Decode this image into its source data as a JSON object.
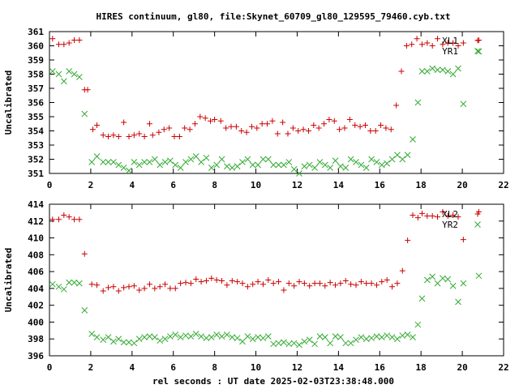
{
  "title": "HIRES continuum, gl80, file:Skynet_60709_gl80_129595_79460.cyb.txt",
  "xlabel": "rel seconds : UT date 2025-02-03T23:38:48.000",
  "colors": {
    "series_x": "#cc0000",
    "series_y": "#33aa33",
    "axis": "#000000"
  },
  "chart_data": [
    {
      "type": "scatter",
      "ylabel": "Uncalibrated",
      "xlim": [
        0,
        22
      ],
      "ylim": [
        351,
        361
      ],
      "xticks": [
        0,
        2,
        4,
        6,
        8,
        10,
        12,
        14,
        16,
        18,
        20,
        22
      ],
      "yticks": [
        351,
        352,
        353,
        354,
        355,
        356,
        357,
        358,
        359,
        360,
        361
      ],
      "series": [
        {
          "name": "XL1",
          "marker": "plus",
          "x": [
            0.15,
            0.45,
            0.7,
            0.95,
            1.2,
            1.45,
            1.7,
            1.85,
            2.1,
            2.3,
            2.6,
            2.85,
            3.1,
            3.35,
            3.6,
            3.85,
            4.1,
            4.35,
            4.6,
            4.85,
            5.0,
            5.3,
            5.55,
            5.8,
            6.05,
            6.3,
            6.55,
            6.8,
            7.05,
            7.3,
            7.55,
            7.8,
            8.0,
            8.3,
            8.55,
            8.8,
            9.05,
            9.3,
            9.55,
            9.8,
            10.05,
            10.3,
            10.55,
            10.8,
            11.05,
            11.3,
            11.55,
            11.8,
            12.05,
            12.3,
            12.55,
            12.8,
            13.05,
            13.3,
            13.55,
            13.8,
            14.05,
            14.3,
            14.55,
            14.8,
            15.05,
            15.3,
            15.55,
            15.8,
            16.05,
            16.3,
            16.55,
            16.8,
            17.05,
            17.3,
            17.55,
            17.8,
            18.05,
            18.3,
            18.55,
            18.8,
            19.05,
            19.3,
            19.55,
            19.8,
            20.05,
            20.8
          ],
          "y": [
            360.5,
            360.1,
            360.1,
            360.2,
            360.4,
            360.4,
            356.9,
            356.9,
            354.1,
            354.4,
            353.7,
            353.6,
            353.7,
            353.6,
            354.6,
            353.6,
            353.7,
            353.8,
            353.6,
            354.5,
            353.7,
            353.9,
            354.1,
            354.2,
            353.6,
            353.6,
            354.2,
            354.1,
            354.5,
            355.0,
            354.9,
            354.7,
            354.8,
            354.7,
            354.2,
            354.3,
            354.3,
            354.0,
            353.9,
            354.3,
            354.2,
            354.5,
            354.5,
            354.7,
            353.8,
            354.6,
            353.8,
            354.2,
            354.0,
            354.1,
            354.0,
            354.4,
            354.2,
            354.5,
            354.8,
            354.7,
            354.1,
            354.2,
            354.8,
            354.4,
            354.3,
            354.4,
            354.0,
            354.0,
            354.4,
            354.2,
            354.1,
            355.8,
            358.2,
            360.0,
            360.1,
            360.5,
            360.1,
            360.2,
            360.0,
            360.5,
            360.1,
            360.2,
            360.2,
            360.0,
            360.2,
            360.4
          ],
          "color": "#cc0000"
        },
        {
          "name": "YR1",
          "marker": "cross",
          "x": [
            0.15,
            0.45,
            0.7,
            0.95,
            1.2,
            1.45,
            1.7,
            2.05,
            2.3,
            2.6,
            2.85,
            3.1,
            3.35,
            3.6,
            3.85,
            4.1,
            4.35,
            4.6,
            4.85,
            5.1,
            5.35,
            5.6,
            5.85,
            6.1,
            6.35,
            6.6,
            6.85,
            7.1,
            7.35,
            7.6,
            7.85,
            8.1,
            8.35,
            8.6,
            8.85,
            9.1,
            9.35,
            9.6,
            9.85,
            10.1,
            10.35,
            10.6,
            10.85,
            11.1,
            11.35,
            11.6,
            11.85,
            12.1,
            12.35,
            12.6,
            12.85,
            13.1,
            13.35,
            13.6,
            13.85,
            14.1,
            14.35,
            14.6,
            14.85,
            15.1,
            15.35,
            15.6,
            15.85,
            16.1,
            16.35,
            16.6,
            16.85,
            17.1,
            17.35,
            17.6,
            17.85,
            18.05,
            18.3,
            18.55,
            18.8,
            19.05,
            19.3,
            19.55,
            19.8,
            20.05,
            20.8
          ],
          "y": [
            358.2,
            358.0,
            357.5,
            358.2,
            358.0,
            357.8,
            355.2,
            351.8,
            352.2,
            351.8,
            351.8,
            351.8,
            351.6,
            351.4,
            351.2,
            351.8,
            351.6,
            351.8,
            351.8,
            352.0,
            351.6,
            351.8,
            351.9,
            351.6,
            351.4,
            351.8,
            352.0,
            352.2,
            351.8,
            352.1,
            351.4,
            351.6,
            352.0,
            351.5,
            351.4,
            351.5,
            351.8,
            352.0,
            351.6,
            351.6,
            352.0,
            352.0,
            351.6,
            351.6,
            351.6,
            351.8,
            351.3,
            351.0,
            351.5,
            351.6,
            351.4,
            351.8,
            351.6,
            351.4,
            351.9,
            351.5,
            351.4,
            352.0,
            351.8,
            351.6,
            351.4,
            352.0,
            351.8,
            351.6,
            351.7,
            352.0,
            352.3,
            352.0,
            352.3,
            353.4,
            356.0,
            358.2,
            358.2,
            358.4,
            358.3,
            358.3,
            358.2,
            358.0,
            358.4,
            355.9,
            359.6
          ],
          "color": "#33aa33"
        }
      ]
    },
    {
      "type": "scatter",
      "ylabel": "Uncalibrated",
      "xlim": [
        0,
        22
      ],
      "ylim": [
        396,
        414
      ],
      "xticks": [
        0,
        2,
        4,
        6,
        8,
        10,
        12,
        14,
        16,
        18,
        20,
        22
      ],
      "yticks": [
        396,
        398,
        400,
        402,
        404,
        406,
        408,
        410,
        412,
        414
      ],
      "series": [
        {
          "name": "XL2",
          "marker": "plus",
          "x": [
            0.15,
            0.45,
            0.7,
            0.95,
            1.2,
            1.45,
            1.7,
            2.05,
            2.3,
            2.6,
            2.85,
            3.1,
            3.35,
            3.6,
            3.85,
            4.1,
            4.35,
            4.6,
            4.85,
            5.1,
            5.35,
            5.6,
            5.85,
            6.1,
            6.35,
            6.6,
            6.85,
            7.1,
            7.35,
            7.6,
            7.85,
            8.1,
            8.35,
            8.6,
            8.85,
            9.1,
            9.35,
            9.6,
            9.85,
            10.1,
            10.35,
            10.6,
            10.85,
            11.1,
            11.35,
            11.6,
            11.85,
            12.1,
            12.35,
            12.6,
            12.85,
            13.1,
            13.35,
            13.6,
            13.85,
            14.1,
            14.35,
            14.6,
            14.85,
            15.1,
            15.35,
            15.6,
            15.85,
            16.1,
            16.35,
            16.6,
            16.85,
            17.1,
            17.35,
            17.6,
            17.85,
            18.05,
            18.3,
            18.55,
            18.8,
            19.05,
            19.3,
            19.55,
            19.8,
            20.05,
            20.8
          ],
          "y": [
            412.2,
            412.2,
            412.7,
            412.5,
            412.2,
            412.2,
            408.1,
            404.5,
            404.4,
            403.7,
            404.1,
            404.2,
            403.7,
            404.1,
            404.2,
            404.3,
            403.8,
            404.0,
            404.5,
            404.0,
            404.2,
            404.5,
            404.0,
            404.0,
            404.6,
            404.7,
            404.6,
            405.1,
            404.8,
            404.9,
            405.2,
            405.0,
            404.9,
            404.4,
            404.9,
            404.8,
            404.6,
            404.2,
            404.5,
            404.8,
            404.5,
            405.0,
            404.6,
            404.8,
            403.8,
            404.6,
            404.3,
            404.8,
            404.6,
            404.3,
            404.6,
            404.6,
            404.3,
            404.7,
            404.4,
            404.6,
            404.9,
            404.5,
            404.4,
            404.8,
            404.6,
            404.6,
            404.4,
            404.8,
            405.0,
            404.2,
            404.6,
            406.1,
            409.7,
            412.7,
            412.4,
            412.9,
            412.6,
            412.6,
            412.5,
            413.1,
            412.6,
            412.7,
            412.5,
            409.8,
            413.1
          ],
          "color": "#cc0000"
        },
        {
          "name": "YR2",
          "marker": "cross",
          "x": [
            0.15,
            0.45,
            0.7,
            0.95,
            1.2,
            1.45,
            1.7,
            2.05,
            2.3,
            2.6,
            2.85,
            3.1,
            3.35,
            3.6,
            3.85,
            4.1,
            4.35,
            4.6,
            4.85,
            5.1,
            5.35,
            5.6,
            5.85,
            6.1,
            6.35,
            6.6,
            6.85,
            7.1,
            7.35,
            7.6,
            7.85,
            8.1,
            8.35,
            8.6,
            8.85,
            9.1,
            9.35,
            9.6,
            9.85,
            10.1,
            10.35,
            10.6,
            10.85,
            11.1,
            11.35,
            11.6,
            11.85,
            12.1,
            12.35,
            12.6,
            12.85,
            13.1,
            13.35,
            13.6,
            13.85,
            14.1,
            14.35,
            14.6,
            14.85,
            15.1,
            15.35,
            15.6,
            15.85,
            16.1,
            16.35,
            16.6,
            16.85,
            17.1,
            17.35,
            17.6,
            17.85,
            18.05,
            18.3,
            18.55,
            18.8,
            19.05,
            19.3,
            19.55,
            19.8,
            20.05,
            20.8
          ],
          "y": [
            404.5,
            404.2,
            403.9,
            404.7,
            404.7,
            404.6,
            401.4,
            398.6,
            398.2,
            397.9,
            398.2,
            397.7,
            398.0,
            397.6,
            397.6,
            397.5,
            398.0,
            398.2,
            398.3,
            398.2,
            397.8,
            398.0,
            398.3,
            398.5,
            398.2,
            398.4,
            398.3,
            398.6,
            398.3,
            398.1,
            398.2,
            398.5,
            398.3,
            398.5,
            398.2,
            398.1,
            397.7,
            398.3,
            398.0,
            398.2,
            398.1,
            398.3,
            397.4,
            397.5,
            397.6,
            397.4,
            397.5,
            397.3,
            397.7,
            397.9,
            397.4,
            398.3,
            398.2,
            397.5,
            398.3,
            398.2,
            397.5,
            397.5,
            397.9,
            398.2,
            398.0,
            398.1,
            398.3,
            398.2,
            398.4,
            398.2,
            398.0,
            398.4,
            398.5,
            398.2,
            399.7,
            402.8,
            405.0,
            405.4,
            404.6,
            405.2,
            405.1,
            404.3,
            402.4,
            404.6,
            405.5
          ],
          "color": "#33aa33"
        }
      ]
    }
  ]
}
